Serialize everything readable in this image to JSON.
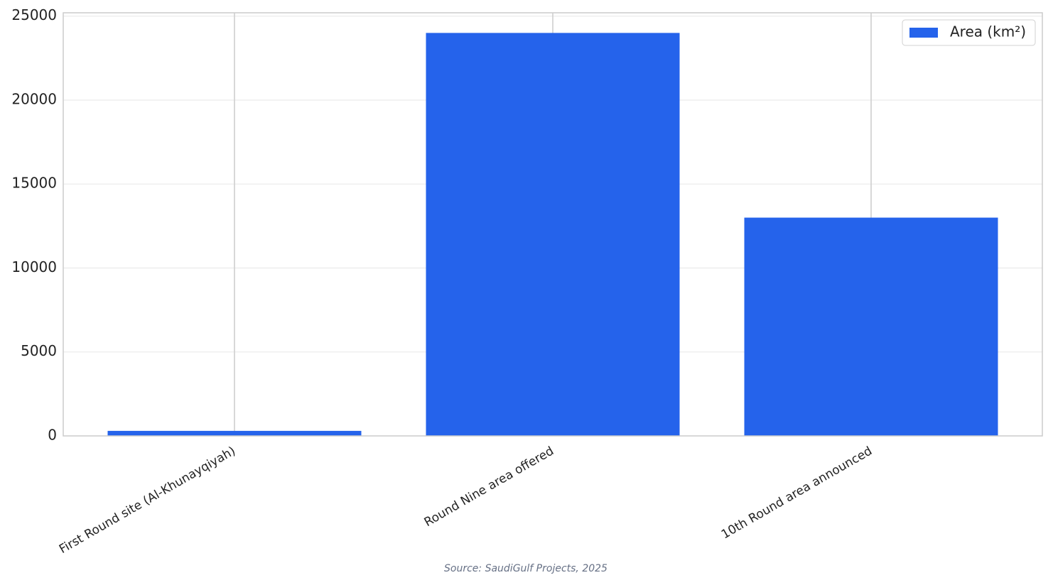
{
  "chart_data": {
    "type": "bar",
    "categories": [
      "First Round site (Al-Khunayqiyah)",
      "Round Nine area offered",
      "10th Round area announced"
    ],
    "series": [
      {
        "name": "Area (km²)",
        "color": "#2563eb",
        "values": [
          300,
          24000,
          13000
        ]
      }
    ],
    "ylim": [
      0,
      25200
    ],
    "yticks": [
      0,
      5000,
      10000,
      15000,
      20000,
      25000
    ],
    "grid": true,
    "legend": "upper right",
    "source": "Source: SaudiGulf Projects, 2025"
  }
}
